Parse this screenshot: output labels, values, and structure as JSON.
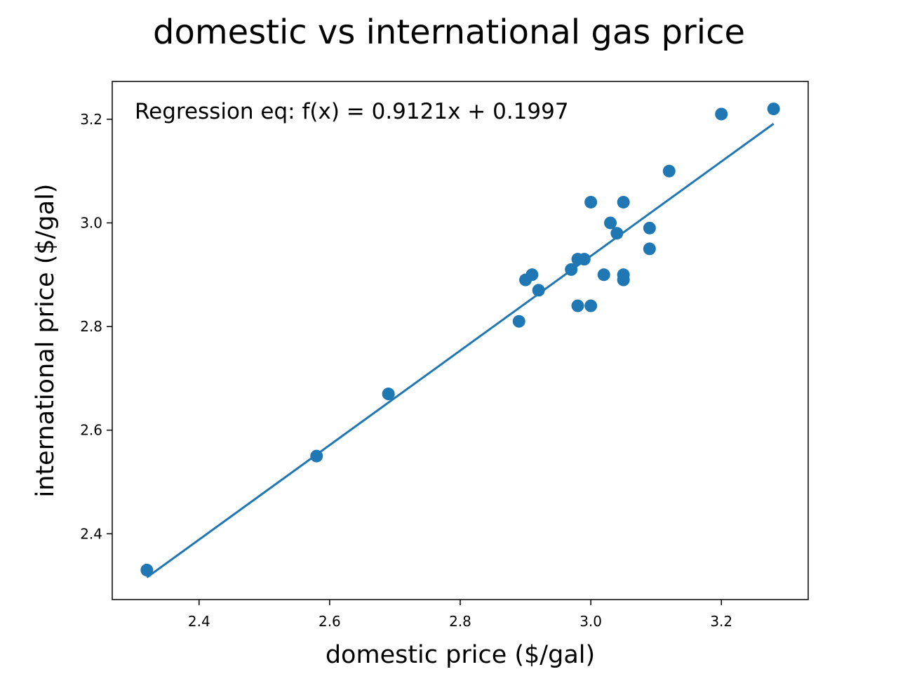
{
  "chart_data": {
    "type": "scatter",
    "title": "domestic vs international gas price",
    "xlabel": "domestic price ($/gal)",
    "ylabel": "international price ($/gal)",
    "xlim": [
      2.267,
      3.333
    ],
    "ylim": [
      2.273,
      3.273
    ],
    "xticks": [
      2.4,
      2.6,
      2.8,
      3.0,
      3.2
    ],
    "xtick_labels": [
      "2.4",
      "2.6",
      "2.8",
      "3.0",
      "3.2"
    ],
    "yticks": [
      2.4,
      2.6,
      2.8,
      3.0,
      3.2
    ],
    "ytick_labels": [
      "2.4",
      "2.6",
      "2.8",
      "3.0",
      "3.2"
    ],
    "grid": false,
    "color": "#1f77b4",
    "annotation": "Regression eq: f(x) = 0.9121x + 0.1997",
    "regression": {
      "slope": 0.9121,
      "intercept": 0.1997,
      "x_range": [
        2.32,
        3.28
      ]
    },
    "points": [
      {
        "x": 2.32,
        "y": 2.33
      },
      {
        "x": 2.58,
        "y": 2.55
      },
      {
        "x": 2.69,
        "y": 2.67
      },
      {
        "x": 2.89,
        "y": 2.81
      },
      {
        "x": 2.9,
        "y": 2.89
      },
      {
        "x": 2.91,
        "y": 2.9
      },
      {
        "x": 2.92,
        "y": 2.87
      },
      {
        "x": 2.97,
        "y": 2.91
      },
      {
        "x": 2.98,
        "y": 2.93
      },
      {
        "x": 2.99,
        "y": 2.93
      },
      {
        "x": 2.98,
        "y": 2.84
      },
      {
        "x": 3.0,
        "y": 2.84
      },
      {
        "x": 3.0,
        "y": 3.04
      },
      {
        "x": 3.02,
        "y": 2.9
      },
      {
        "x": 3.03,
        "y": 3.0
      },
      {
        "x": 3.04,
        "y": 2.98
      },
      {
        "x": 3.05,
        "y": 3.04
      },
      {
        "x": 3.05,
        "y": 2.9
      },
      {
        "x": 3.05,
        "y": 2.89
      },
      {
        "x": 3.09,
        "y": 2.99
      },
      {
        "x": 3.09,
        "y": 2.95
      },
      {
        "x": 3.12,
        "y": 3.1
      },
      {
        "x": 3.2,
        "y": 3.21
      },
      {
        "x": 3.28,
        "y": 3.22
      }
    ]
  }
}
